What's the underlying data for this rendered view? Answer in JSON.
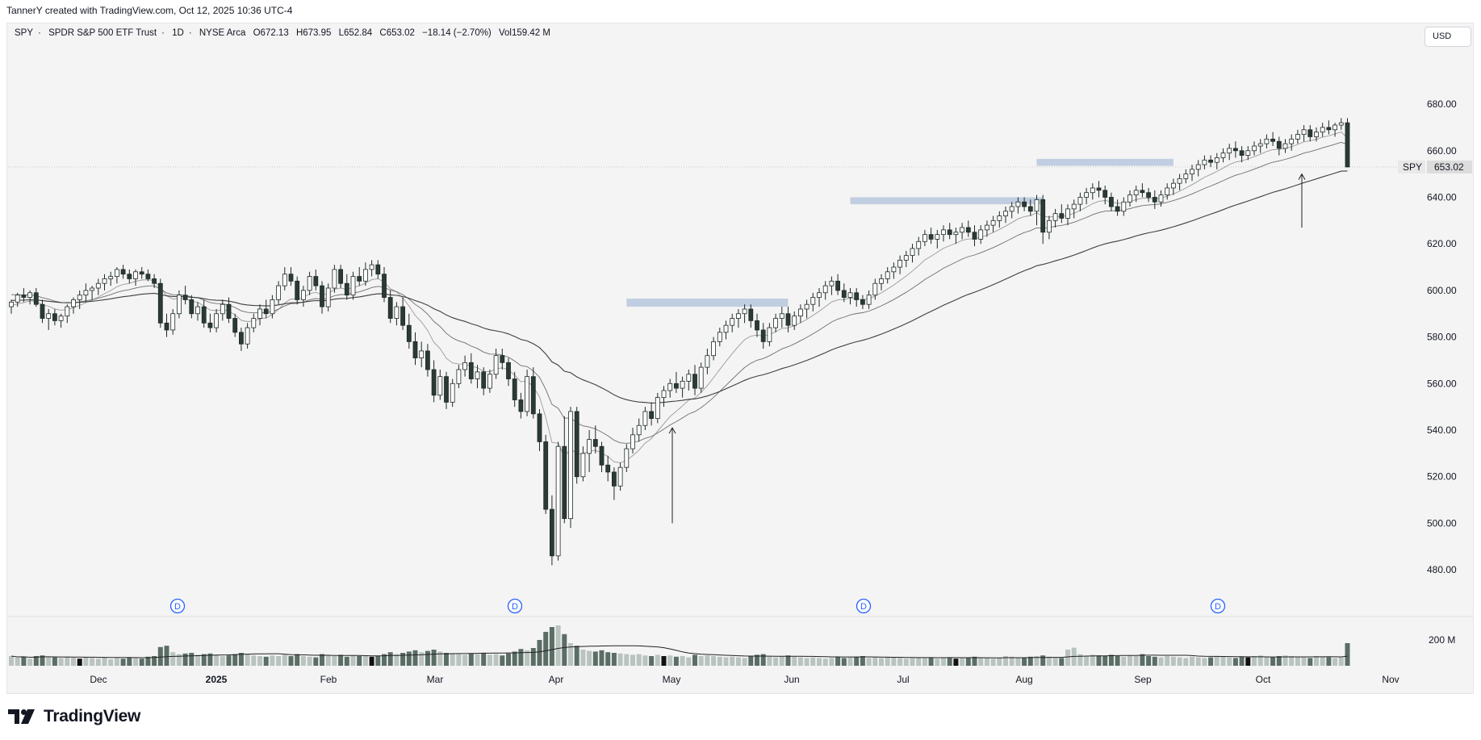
{
  "attribution": "TannerY created with TradingView.com, Oct 12, 2025 10:36 UTC-4",
  "legend": {
    "symbol": "SPY",
    "name": "SPDR S&P 500 ETF Trust",
    "interval": "1D",
    "exchange": "NYSE Arca",
    "open": "O672.13",
    "high": "H673.95",
    "low": "L652.84",
    "close": "C653.02",
    "change": "−18.14 (−2.70%)",
    "volume": "Vol159.42 M"
  },
  "currency": "USD",
  "brand": "TradingView",
  "colors": {
    "up": "#ffffff",
    "down": "#2b3a34",
    "volume_up": "#b9c3bf",
    "volume_down": "#5b6e66",
    "ma": "#555555",
    "zone": "#b7c7dd"
  },
  "chart_data": {
    "type": "candlestick",
    "y_axis": {
      "ylim": [
        470,
        697
      ],
      "ticks": [
        "480.00",
        "500.00",
        "520.00",
        "540.00",
        "560.00",
        "580.00",
        "600.00",
        "620.00",
        "640.00",
        "660.00",
        "680.00"
      ]
    },
    "x_axis": {
      "ticks": [
        {
          "label": "Dec",
          "bold": false
        },
        {
          "label": "2025",
          "bold": true
        },
        {
          "label": "Feb",
          "bold": false
        },
        {
          "label": "Mar",
          "bold": false
        },
        {
          "label": "Apr",
          "bold": false
        },
        {
          "label": "May",
          "bold": false
        },
        {
          "label": "Jun",
          "bold": false
        },
        {
          "label": "Jul",
          "bold": false
        },
        {
          "label": "Aug",
          "bold": false
        },
        {
          "label": "Sep",
          "bold": false
        },
        {
          "label": "Oct",
          "bold": false
        },
        {
          "label": "Nov",
          "bold": false
        }
      ]
    },
    "price_label": {
      "symbol": "SPY",
      "value": "653.02"
    },
    "volume_axis": {
      "label": "200 M"
    },
    "dividend_marker": "D",
    "ohlc": [
      [
        593,
        596,
        590,
        595
      ],
      [
        595,
        599,
        593,
        598
      ],
      [
        598,
        601,
        595,
        597
      ],
      [
        597,
        600,
        594,
        599
      ],
      [
        599,
        601,
        593,
        594
      ],
      [
        594,
        596,
        586,
        588
      ],
      [
        588,
        592,
        583,
        590
      ],
      [
        590,
        592,
        585,
        587
      ],
      [
        587,
        590,
        584,
        589
      ],
      [
        589,
        594,
        586,
        593
      ],
      [
        593,
        597,
        590,
        596
      ],
      [
        596,
        600,
        592,
        598
      ],
      [
        598,
        603,
        595,
        600
      ],
      [
        600,
        602,
        596,
        601
      ],
      [
        601,
        605,
        598,
        603
      ],
      [
        603,
        607,
        600,
        605
      ],
      [
        605,
        608,
        602,
        606
      ],
      [
        606,
        610,
        603,
        609
      ],
      [
        609,
        611,
        605,
        607
      ],
      [
        607,
        609,
        603,
        605
      ],
      [
        605,
        609,
        602,
        608
      ],
      [
        608,
        610,
        605,
        607
      ],
      [
        607,
        609,
        604,
        605
      ],
      [
        605,
        607,
        601,
        603
      ],
      [
        603,
        605,
        584,
        586
      ],
      [
        586,
        590,
        580,
        583
      ],
      [
        583,
        592,
        581,
        590
      ],
      [
        590,
        600,
        588,
        598
      ],
      [
        598,
        602,
        594,
        596
      ],
      [
        596,
        598,
        588,
        590
      ],
      [
        590,
        595,
        587,
        593
      ],
      [
        593,
        596,
        584,
        586
      ],
      [
        586,
        590,
        582,
        584
      ],
      [
        584,
        592,
        582,
        590
      ],
      [
        590,
        596,
        587,
        594
      ],
      [
        594,
        597,
        586,
        588
      ],
      [
        588,
        590,
        580,
        582
      ],
      [
        582,
        584,
        574,
        577
      ],
      [
        577,
        586,
        575,
        584
      ],
      [
        584,
        590,
        582,
        588
      ],
      [
        588,
        594,
        585,
        592
      ],
      [
        592,
        596,
        588,
        590
      ],
      [
        590,
        598,
        588,
        596
      ],
      [
        596,
        604,
        594,
        602
      ],
      [
        602,
        610,
        600,
        607
      ],
      [
        607,
        610,
        602,
        604
      ],
      [
        604,
        606,
        594,
        596
      ],
      [
        596,
        602,
        593,
        600
      ],
      [
        600,
        608,
        598,
        606
      ],
      [
        606,
        609,
        600,
        602
      ],
      [
        602,
        604,
        590,
        593
      ],
      [
        593,
        603,
        591,
        601
      ],
      [
        601,
        611,
        599,
        609
      ],
      [
        609,
        611,
        601,
        603
      ],
      [
        603,
        607,
        596,
        598
      ],
      [
        598,
        608,
        596,
        606
      ],
      [
        606,
        610,
        602,
        604
      ],
      [
        604,
        612,
        602,
        609
      ],
      [
        609,
        613,
        606,
        611
      ],
      [
        611,
        613,
        605,
        607
      ],
      [
        607,
        610,
        595,
        597
      ],
      [
        597,
        600,
        586,
        588
      ],
      [
        588,
        595,
        585,
        593
      ],
      [
        593,
        597,
        583,
        585
      ],
      [
        585,
        590,
        575,
        578
      ],
      [
        578,
        582,
        568,
        571
      ],
      [
        571,
        578,
        567,
        574
      ],
      [
        574,
        577,
        563,
        566
      ],
      [
        566,
        570,
        552,
        555
      ],
      [
        555,
        566,
        553,
        563
      ],
      [
        563,
        565,
        549,
        552
      ],
      [
        552,
        562,
        550,
        560
      ],
      [
        560,
        568,
        558,
        566
      ],
      [
        566,
        572,
        563,
        569
      ],
      [
        569,
        573,
        560,
        562
      ],
      [
        562,
        568,
        558,
        565
      ],
      [
        565,
        567,
        555,
        558
      ],
      [
        558,
        566,
        556,
        564
      ],
      [
        564,
        575,
        562,
        572
      ],
      [
        572,
        575,
        566,
        569
      ],
      [
        569,
        571,
        559,
        562
      ],
      [
        562,
        565,
        550,
        553
      ],
      [
        553,
        556,
        545,
        548
      ],
      [
        548,
        566,
        546,
        563
      ],
      [
        563,
        567,
        545,
        547
      ],
      [
        547,
        549,
        531,
        535
      ],
      [
        535,
        538,
        504,
        506
      ],
      [
        506,
        512,
        482,
        486
      ],
      [
        486,
        535,
        484,
        533
      ],
      [
        533,
        546,
        500,
        502
      ],
      [
        502,
        550,
        498,
        548
      ],
      [
        548,
        550,
        517,
        520
      ],
      [
        520,
        533,
        518,
        530
      ],
      [
        530,
        540,
        522,
        536
      ],
      [
        536,
        542,
        530,
        533
      ],
      [
        533,
        535,
        522,
        525
      ],
      [
        525,
        529,
        518,
        522
      ],
      [
        522,
        524,
        510,
        516
      ],
      [
        516,
        526,
        514,
        524
      ],
      [
        524,
        534,
        522,
        532
      ],
      [
        532,
        541,
        530,
        538
      ],
      [
        538,
        545,
        535,
        542
      ],
      [
        542,
        550,
        540,
        548
      ],
      [
        548,
        552,
        542,
        545
      ],
      [
        545,
        556,
        543,
        554
      ],
      [
        554,
        559,
        550,
        557
      ],
      [
        557,
        562,
        554,
        560
      ],
      [
        560,
        565,
        556,
        558
      ],
      [
        558,
        563,
        554,
        561
      ],
      [
        561,
        566,
        557,
        564
      ],
      [
        564,
        568,
        555,
        558
      ],
      [
        558,
        569,
        556,
        567
      ],
      [
        567,
        575,
        564,
        572
      ],
      [
        572,
        580,
        570,
        578
      ],
      [
        578,
        584,
        576,
        582
      ],
      [
        582,
        587,
        579,
        585
      ],
      [
        585,
        590,
        582,
        588
      ],
      [
        588,
        592,
        584,
        590
      ],
      [
        590,
        594,
        586,
        592
      ],
      [
        592,
        594,
        584,
        587
      ],
      [
        587,
        590,
        580,
        583
      ],
      [
        583,
        586,
        575,
        578
      ],
      [
        578,
        586,
        576,
        584
      ],
      [
        584,
        590,
        582,
        588
      ],
      [
        588,
        593,
        584,
        590
      ],
      [
        590,
        593,
        582,
        585
      ],
      [
        585,
        591,
        583,
        589
      ],
      [
        589,
        594,
        586,
        592
      ],
      [
        592,
        596,
        588,
        594
      ],
      [
        594,
        599,
        591,
        597
      ],
      [
        597,
        601,
        593,
        599
      ],
      [
        599,
        604,
        596,
        602
      ],
      [
        602,
        606,
        598,
        604
      ],
      [
        604,
        607,
        598,
        600
      ],
      [
        600,
        603,
        595,
        597
      ],
      [
        597,
        601,
        594,
        599
      ],
      [
        599,
        601,
        593,
        596
      ],
      [
        596,
        598,
        592,
        594
      ],
      [
        594,
        600,
        592,
        598
      ],
      [
        598,
        605,
        596,
        603
      ],
      [
        603,
        607,
        600,
        605
      ],
      [
        605,
        610,
        603,
        608
      ],
      [
        608,
        612,
        605,
        610
      ],
      [
        610,
        615,
        607,
        613
      ],
      [
        613,
        617,
        610,
        615
      ],
      [
        615,
        620,
        612,
        618
      ],
      [
        618,
        623,
        615,
        621
      ],
      [
        621,
        626,
        619,
        624
      ],
      [
        624,
        627,
        620,
        622
      ],
      [
        622,
        626,
        618,
        624
      ],
      [
        624,
        628,
        621,
        626
      ],
      [
        626,
        629,
        622,
        624
      ],
      [
        624,
        627,
        620,
        625
      ],
      [
        625,
        629,
        622,
        627
      ],
      [
        627,
        630,
        623,
        625
      ],
      [
        625,
        628,
        619,
        622
      ],
      [
        622,
        628,
        620,
        626
      ],
      [
        626,
        630,
        623,
        628
      ],
      [
        628,
        632,
        625,
        630
      ],
      [
        630,
        634,
        627,
        632
      ],
      [
        632,
        636,
        629,
        634
      ],
      [
        634,
        638,
        631,
        636
      ],
      [
        636,
        640,
        633,
        638
      ],
      [
        638,
        640,
        634,
        636
      ],
      [
        636,
        639,
        632,
        634
      ],
      [
        634,
        641,
        628,
        639
      ],
      [
        639,
        641,
        620,
        625
      ],
      [
        625,
        632,
        622,
        630
      ],
      [
        630,
        635,
        627,
        633
      ],
      [
        633,
        637,
        629,
        631
      ],
      [
        631,
        637,
        628,
        635
      ],
      [
        635,
        639,
        631,
        637
      ],
      [
        637,
        642,
        634,
        640
      ],
      [
        640,
        644,
        637,
        642
      ],
      [
        642,
        646,
        639,
        644
      ],
      [
        644,
        647,
        640,
        643
      ],
      [
        643,
        645,
        637,
        640
      ],
      [
        640,
        642,
        634,
        636
      ],
      [
        636,
        639,
        632,
        634
      ],
      [
        634,
        640,
        632,
        638
      ],
      [
        638,
        643,
        636,
        641
      ],
      [
        641,
        645,
        638,
        643
      ],
      [
        643,
        646,
        640,
        642
      ],
      [
        642,
        644,
        638,
        640
      ],
      [
        640,
        643,
        635,
        638
      ],
      [
        638,
        643,
        636,
        641
      ],
      [
        641,
        646,
        639,
        644
      ],
      [
        644,
        648,
        641,
        646
      ],
      [
        646,
        650,
        643,
        648
      ],
      [
        648,
        652,
        646,
        650
      ],
      [
        650,
        654,
        647,
        652
      ],
      [
        652,
        656,
        649,
        654
      ],
      [
        654,
        658,
        652,
        656
      ],
      [
        656,
        658,
        653,
        655
      ],
      [
        655,
        659,
        652,
        657
      ],
      [
        657,
        661,
        655,
        659
      ],
      [
        659,
        663,
        656,
        661
      ],
      [
        661,
        664,
        657,
        660
      ],
      [
        660,
        662,
        655,
        658
      ],
      [
        658,
        662,
        656,
        660
      ],
      [
        660,
        664,
        658,
        662
      ],
      [
        662,
        665,
        659,
        663
      ],
      [
        663,
        667,
        661,
        665
      ],
      [
        665,
        668,
        662,
        664
      ],
      [
        664,
        666,
        658,
        661
      ],
      [
        661,
        665,
        659,
        663
      ],
      [
        663,
        667,
        660,
        665
      ],
      [
        665,
        669,
        663,
        667
      ],
      [
        667,
        671,
        664,
        669
      ],
      [
        669,
        671,
        664,
        666
      ],
      [
        666,
        670,
        664,
        668
      ],
      [
        668,
        672,
        666,
        670
      ],
      [
        670,
        673,
        667,
        669
      ],
      [
        669,
        672,
        666,
        671
      ],
      [
        671,
        674,
        669,
        672
      ],
      [
        672,
        674,
        652.84,
        653.02
      ]
    ],
    "volume": [
      0.3,
      0.25,
      0.28,
      0.22,
      0.3,
      0.32,
      0.28,
      0.26,
      0.24,
      0.28,
      0.25,
      0.22,
      0.26,
      0.24,
      0.22,
      0.25,
      0.2,
      0.24,
      0.22,
      0.26,
      0.24,
      0.22,
      0.28,
      0.3,
      0.58,
      0.62,
      0.42,
      0.36,
      0.38,
      0.4,
      0.34,
      0.36,
      0.38,
      0.34,
      0.3,
      0.32,
      0.36,
      0.4,
      0.36,
      0.32,
      0.3,
      0.28,
      0.32,
      0.3,
      0.34,
      0.3,
      0.36,
      0.3,
      0.28,
      0.26,
      0.36,
      0.32,
      0.3,
      0.34,
      0.28,
      0.32,
      0.3,
      0.3,
      0.28,
      0.3,
      0.36,
      0.42,
      0.36,
      0.4,
      0.44,
      0.48,
      0.42,
      0.46,
      0.5,
      0.44,
      0.4,
      0.38,
      0.36,
      0.34,
      0.38,
      0.36,
      0.4,
      0.34,
      0.36,
      0.32,
      0.38,
      0.44,
      0.52,
      0.48,
      0.55,
      0.8,
      1.05,
      1.2,
      1.25,
      0.98,
      0.7,
      0.62,
      0.5,
      0.46,
      0.44,
      0.48,
      0.42,
      0.4,
      0.38,
      0.36,
      0.34,
      0.36,
      0.32,
      0.3,
      0.34,
      0.3,
      0.32,
      0.28,
      0.3,
      0.26,
      0.34,
      0.3,
      0.32,
      0.3,
      0.28,
      0.26,
      0.28,
      0.26,
      0.24,
      0.3,
      0.34,
      0.36,
      0.28,
      0.26,
      0.3,
      0.32,
      0.28,
      0.26,
      0.24,
      0.26,
      0.24,
      0.22,
      0.24,
      0.28,
      0.24,
      0.26,
      0.28,
      0.3,
      0.24,
      0.26,
      0.24,
      0.28,
      0.26,
      0.24,
      0.22,
      0.24,
      0.26,
      0.24,
      0.26,
      0.22,
      0.24,
      0.26,
      0.22,
      0.24,
      0.26,
      0.28,
      0.24,
      0.26,
      0.22,
      0.24,
      0.3,
      0.28,
      0.26,
      0.24,
      0.28,
      0.3,
      0.32,
      0.28,
      0.26,
      0.24,
      0.5,
      0.56,
      0.36,
      0.3,
      0.34,
      0.32,
      0.3,
      0.34,
      0.3,
      0.28,
      0.32,
      0.3,
      0.36,
      0.3,
      0.28,
      0.26,
      0.3,
      0.28,
      0.26,
      0.24,
      0.28,
      0.26,
      0.24,
      0.26,
      0.3,
      0.28,
      0.26,
      0.24,
      0.28,
      0.26,
      0.3,
      0.32,
      0.28,
      0.26,
      0.3,
      0.32,
      0.3,
      0.28,
      0.26,
      0.24,
      0.3,
      0.28,
      0.26,
      0.24,
      0.26,
      0.7
    ]
  }
}
